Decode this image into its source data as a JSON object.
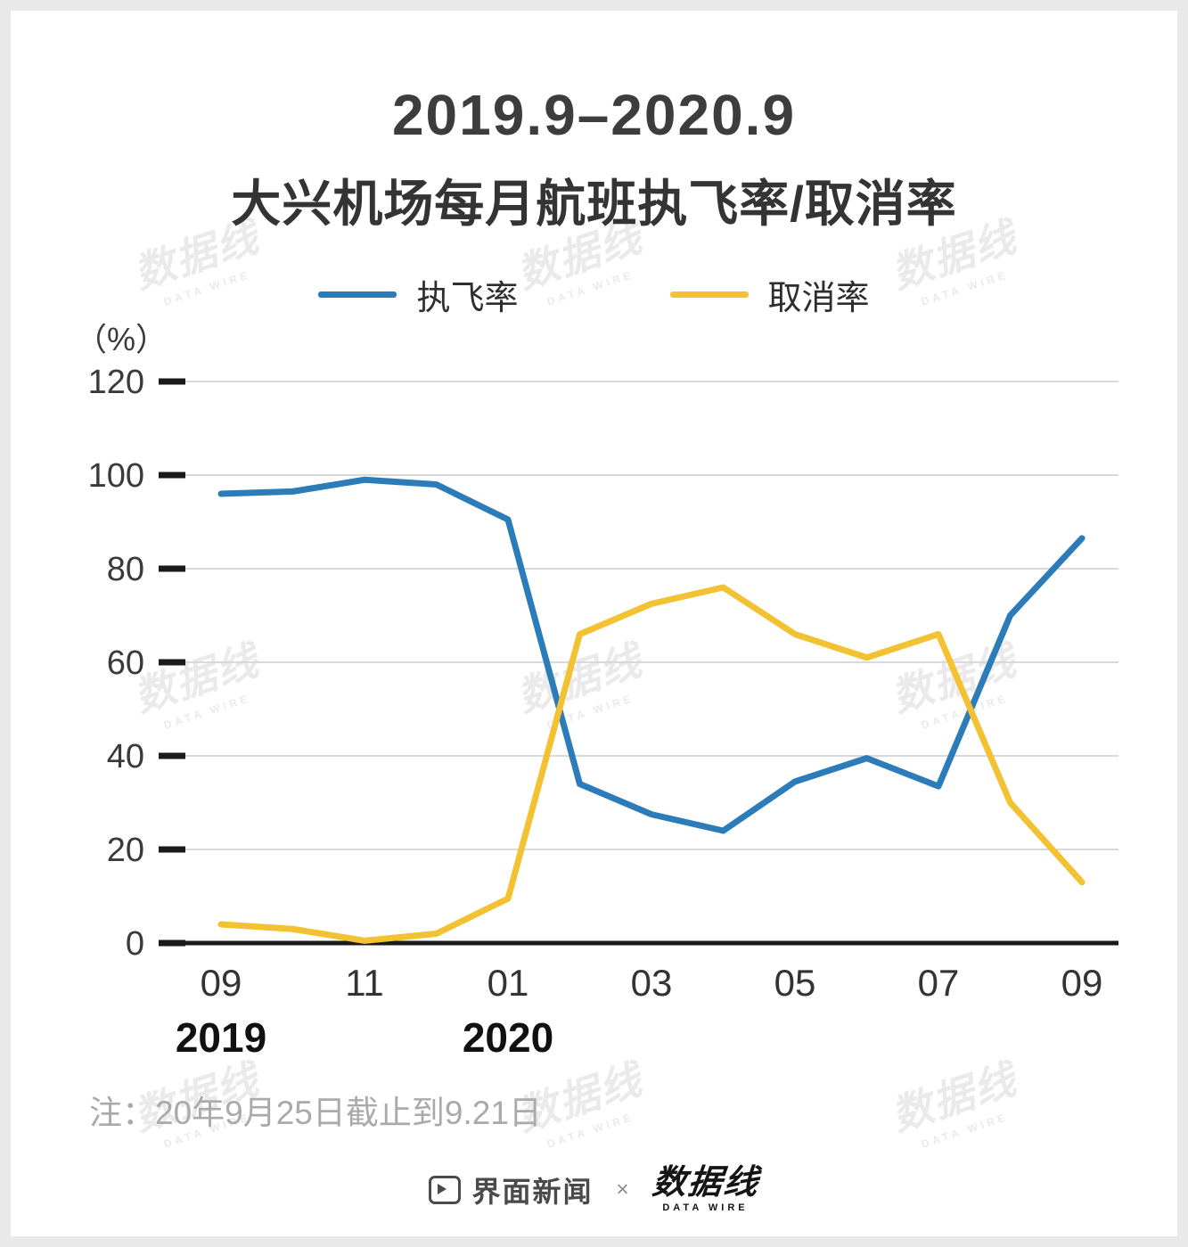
{
  "title": {
    "line1": "2019.9–2020.9",
    "line2": "大兴机场每月航班执飞率/取消率"
  },
  "legend": [
    {
      "label": "执飞率",
      "color": "#2b7cb9"
    },
    {
      "label": "取消率",
      "color": "#f2c233"
    }
  ],
  "unit_label": "（%）",
  "note": "注：20年9月25日截止到9.21日",
  "footer": {
    "brand1": "界面新闻",
    "separator": "×",
    "brand2": "数据线",
    "brand2_sub": "DATA WIRE"
  },
  "watermark": {
    "text": "数据线",
    "sub": "DATA WIRE"
  },
  "colors": {
    "series_blue": "#2b7cb9",
    "series_yellow": "#f2c233",
    "axis": "#1a1a1a",
    "grid": "#d9d9d9",
    "tick_label": "#3a3a3a",
    "year_label": "#111111"
  },
  "chart_data": {
    "type": "line",
    "title": "2019.9–2020.9 大兴机场每月航班执飞率/取消率",
    "ylabel": "（%）",
    "ylim": [
      0,
      120
    ],
    "yticks": [
      0,
      20,
      40,
      60,
      80,
      100,
      120
    ],
    "grid": true,
    "legend_position": "top",
    "x": [
      "2019-09",
      "2019-10",
      "2019-11",
      "2019-12",
      "2020-01",
      "2020-02",
      "2020-03",
      "2020-04",
      "2020-05",
      "2020-06",
      "2020-07",
      "2020-08",
      "2020-09"
    ],
    "x_tick_labels": [
      "09",
      "11",
      "01",
      "03",
      "05",
      "07",
      "09"
    ],
    "x_tick_indices": [
      0,
      2,
      4,
      6,
      8,
      10,
      12
    ],
    "year_labels": [
      {
        "text": "2019",
        "index": 0
      },
      {
        "text": "2020",
        "index": 4
      }
    ],
    "series": [
      {
        "name": "执飞率",
        "color": "#2b7cb9",
        "values": [
          96,
          96.5,
          99,
          98,
          90.5,
          34,
          27.5,
          24,
          34.5,
          39.5,
          33.5,
          70,
          86.5
        ]
      },
      {
        "name": "取消率",
        "color": "#f2c233",
        "values": [
          4,
          3,
          0.5,
          2,
          9.5,
          66,
          72.5,
          76,
          66,
          61,
          66,
          30,
          13
        ]
      }
    ]
  }
}
